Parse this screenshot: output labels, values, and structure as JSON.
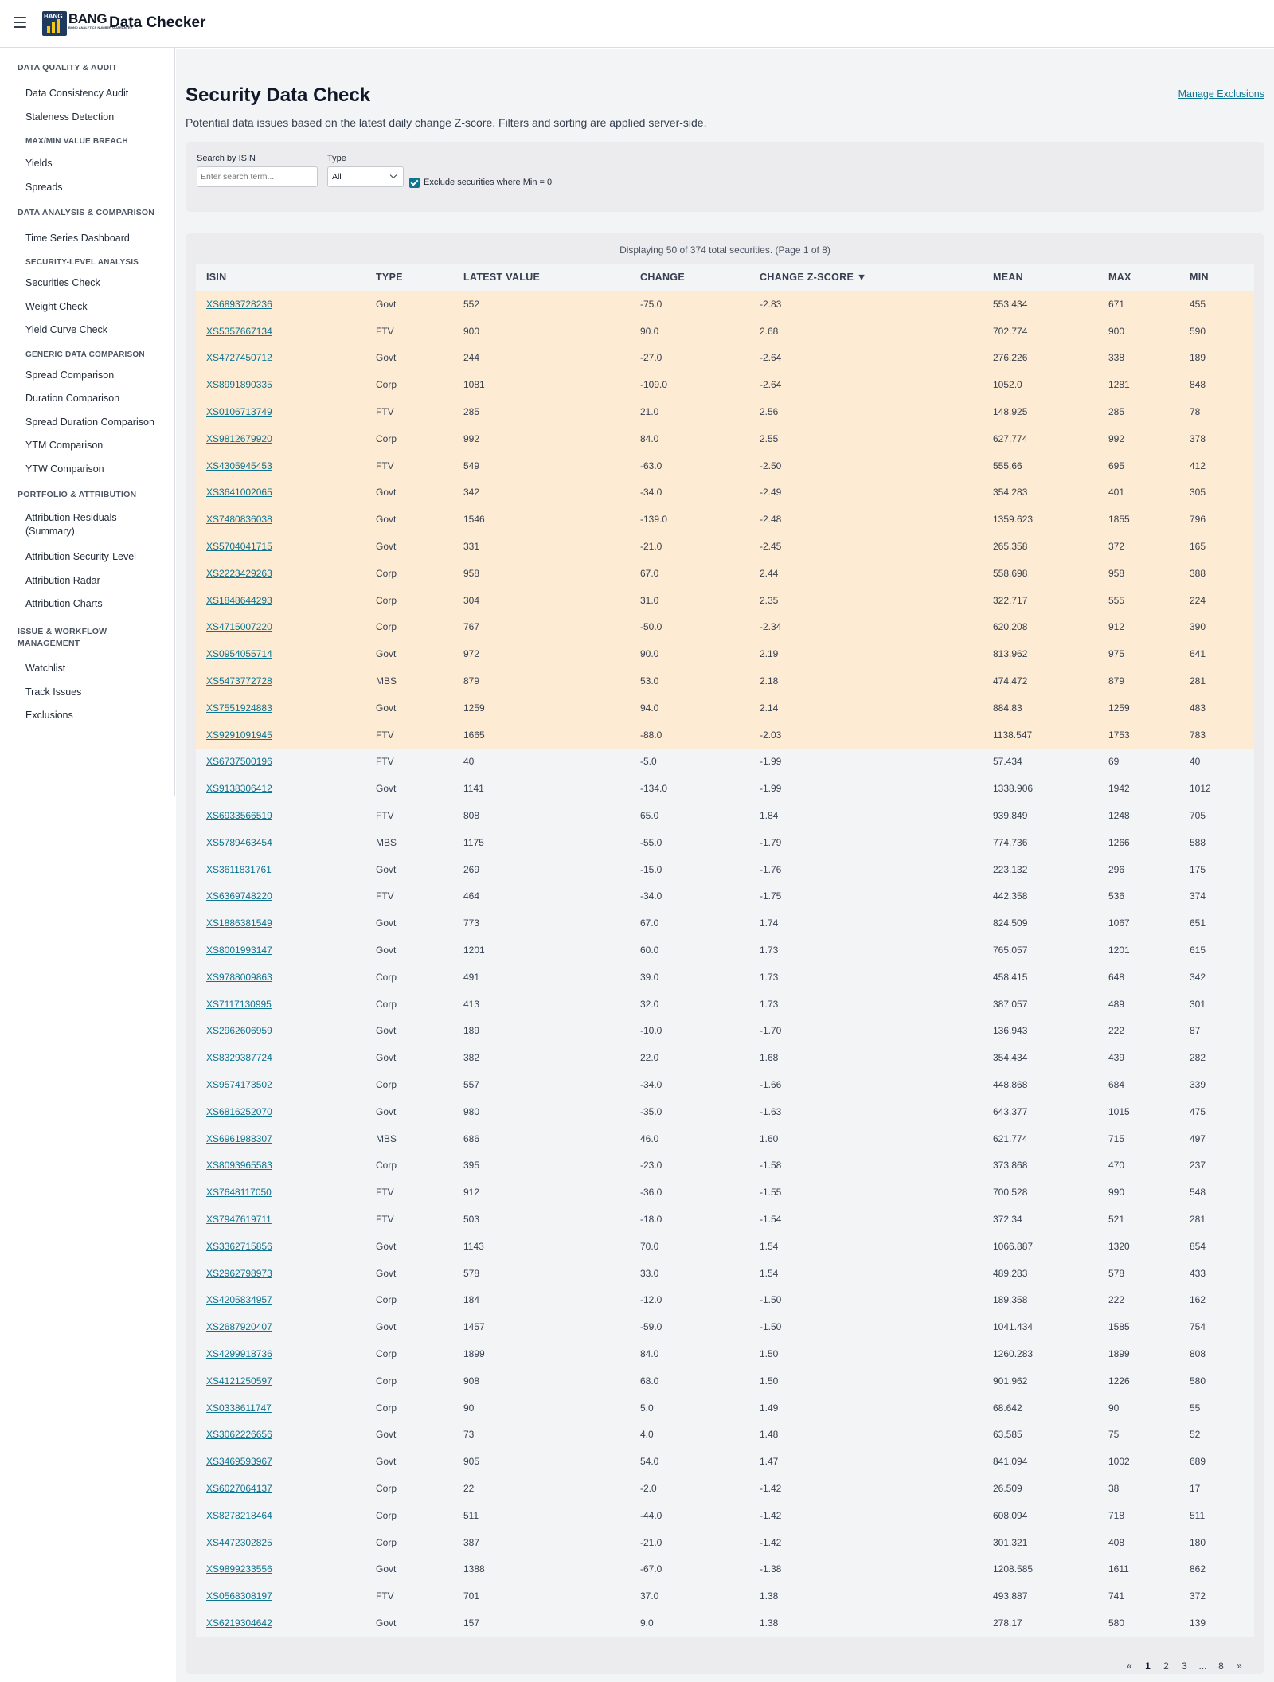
{
  "app": {
    "brand": "BANG",
    "brand_tagline": "BOND ANALYTICS NUMBER GUARANTEE",
    "title": "Data Checker"
  },
  "sidebar": {
    "sections": [
      {
        "label": "DATA QUALITY & AUDIT",
        "items": [
          "Data Consistency Audit",
          "Staleness Detection"
        ]
      },
      {
        "sub": "MAX/MIN VALUE BREACH",
        "items": [
          "Yields",
          "Spreads"
        ]
      },
      {
        "label": "DATA ANALYSIS & COMPARISON",
        "items": [
          "Time Series Dashboard"
        ]
      },
      {
        "sub": "SECURITY-LEVEL ANALYSIS",
        "items": [
          "Securities Check",
          "Weight Check",
          "Yield Curve Check"
        ]
      },
      {
        "sub": "GENERIC DATA COMPARISON",
        "items": [
          "Spread Comparison",
          "Duration Comparison",
          "Spread Duration Comparison",
          "YTM Comparison",
          "YTW Comparison"
        ]
      },
      {
        "label": "PORTFOLIO & ATTRIBUTION",
        "items": [
          "Attribution Residuals (Summary)",
          "Attribution Security-Level",
          "Attribution Radar",
          "Attribution Charts"
        ]
      },
      {
        "label": "ISSUE & WORKFLOW MANAGEMENT",
        "items": [
          "Watchlist",
          "Track Issues",
          "Exclusions"
        ]
      }
    ]
  },
  "main": {
    "title": "Security Data Check",
    "description": "Potential data issues based on the latest daily change Z-score. Filters and sorting are applied server-side.",
    "manage_link": "Manage Exclusions"
  },
  "filters": {
    "search_label": "Search by ISIN",
    "search_placeholder": "Enter search term...",
    "type_label": "Type",
    "type_value": "All",
    "exclude_label": "Exclude securities where Min = 0",
    "exclude_checked": true
  },
  "table": {
    "info": "Displaying 50 of 374 total securities. (Page 1 of 8)",
    "columns": [
      "ISIN",
      "TYPE",
      "LATEST VALUE",
      "CHANGE",
      "CHANGE Z-SCORE ▼",
      "MEAN",
      "MAX",
      "MIN"
    ],
    "rows": [
      [
        "XS6893728236",
        "Govt",
        "552",
        "-75.0",
        "-2.83",
        "553.434",
        "671",
        "455"
      ],
      [
        "XS5357667134",
        "FTV",
        "900",
        "90.0",
        "2.68",
        "702.774",
        "900",
        "590"
      ],
      [
        "XS4727450712",
        "Govt",
        "244",
        "-27.0",
        "-2.64",
        "276.226",
        "338",
        "189"
      ],
      [
        "XS8991890335",
        "Corp",
        "1081",
        "-109.0",
        "-2.64",
        "1052.0",
        "1281",
        "848"
      ],
      [
        "XS0106713749",
        "FTV",
        "285",
        "21.0",
        "2.56",
        "148.925",
        "285",
        "78"
      ],
      [
        "XS9812679920",
        "Corp",
        "992",
        "84.0",
        "2.55",
        "627.774",
        "992",
        "378"
      ],
      [
        "XS4305945453",
        "FTV",
        "549",
        "-63.0",
        "-2.50",
        "555.66",
        "695",
        "412"
      ],
      [
        "XS3641002065",
        "Govt",
        "342",
        "-34.0",
        "-2.49",
        "354.283",
        "401",
        "305"
      ],
      [
        "XS7480836038",
        "Govt",
        "1546",
        "-139.0",
        "-2.48",
        "1359.623",
        "1855",
        "796"
      ],
      [
        "XS5704041715",
        "Govt",
        "331",
        "-21.0",
        "-2.45",
        "265.358",
        "372",
        "165"
      ],
      [
        "XS2223429263",
        "Corp",
        "958",
        "67.0",
        "2.44",
        "558.698",
        "958",
        "388"
      ],
      [
        "XS1848644293",
        "Corp",
        "304",
        "31.0",
        "2.35",
        "322.717",
        "555",
        "224"
      ],
      [
        "XS4715007220",
        "Corp",
        "767",
        "-50.0",
        "-2.34",
        "620.208",
        "912",
        "390"
      ],
      [
        "XS0954055714",
        "Govt",
        "972",
        "90.0",
        "2.19",
        "813.962",
        "975",
        "641"
      ],
      [
        "XS5473772728",
        "MBS",
        "879",
        "53.0",
        "2.18",
        "474.472",
        "879",
        "281"
      ],
      [
        "XS7551924883",
        "Govt",
        "1259",
        "94.0",
        "2.14",
        "884.83",
        "1259",
        "483"
      ],
      [
        "XS9291091945",
        "FTV",
        "1665",
        "-88.0",
        "-2.03",
        "1138.547",
        "1753",
        "783"
      ],
      [
        "XS6737500196",
        "FTV",
        "40",
        "-5.0",
        "-1.99",
        "57.434",
        "69",
        "40"
      ],
      [
        "XS9138306412",
        "Govt",
        "1141",
        "-134.0",
        "-1.99",
        "1338.906",
        "1942",
        "1012"
      ],
      [
        "XS6933566519",
        "FTV",
        "808",
        "65.0",
        "1.84",
        "939.849",
        "1248",
        "705"
      ],
      [
        "XS5789463454",
        "MBS",
        "1175",
        "-55.0",
        "-1.79",
        "774.736",
        "1266",
        "588"
      ],
      [
        "XS3611831761",
        "Govt",
        "269",
        "-15.0",
        "-1.76",
        "223.132",
        "296",
        "175"
      ],
      [
        "XS6369748220",
        "FTV",
        "464",
        "-34.0",
        "-1.75",
        "442.358",
        "536",
        "374"
      ],
      [
        "XS1886381549",
        "Govt",
        "773",
        "67.0",
        "1.74",
        "824.509",
        "1067",
        "651"
      ],
      [
        "XS8001993147",
        "Govt",
        "1201",
        "60.0",
        "1.73",
        "765.057",
        "1201",
        "615"
      ],
      [
        "XS9788009863",
        "Corp",
        "491",
        "39.0",
        "1.73",
        "458.415",
        "648",
        "342"
      ],
      [
        "XS7117130995",
        "Corp",
        "413",
        "32.0",
        "1.73",
        "387.057",
        "489",
        "301"
      ],
      [
        "XS2962606959",
        "Govt",
        "189",
        "-10.0",
        "-1.70",
        "136.943",
        "222",
        "87"
      ],
      [
        "XS8329387724",
        "Govt",
        "382",
        "22.0",
        "1.68",
        "354.434",
        "439",
        "282"
      ],
      [
        "XS9574173502",
        "Corp",
        "557",
        "-34.0",
        "-1.66",
        "448.868",
        "684",
        "339"
      ],
      [
        "XS6816252070",
        "Govt",
        "980",
        "-35.0",
        "-1.63",
        "643.377",
        "1015",
        "475"
      ],
      [
        "XS6961988307",
        "MBS",
        "686",
        "46.0",
        "1.60",
        "621.774",
        "715",
        "497"
      ],
      [
        "XS8093965583",
        "Corp",
        "395",
        "-23.0",
        "-1.58",
        "373.868",
        "470",
        "237"
      ],
      [
        "XS7648117050",
        "FTV",
        "912",
        "-36.0",
        "-1.55",
        "700.528",
        "990",
        "548"
      ],
      [
        "XS7947619711",
        "FTV",
        "503",
        "-18.0",
        "-1.54",
        "372.34",
        "521",
        "281"
      ],
      [
        "XS3362715856",
        "Govt",
        "1143",
        "70.0",
        "1.54",
        "1066.887",
        "1320",
        "854"
      ],
      [
        "XS2962798973",
        "Govt",
        "578",
        "33.0",
        "1.54",
        "489.283",
        "578",
        "433"
      ],
      [
        "XS4205834957",
        "Corp",
        "184",
        "-12.0",
        "-1.50",
        "189.358",
        "222",
        "162"
      ],
      [
        "XS2687920407",
        "Govt",
        "1457",
        "-59.0",
        "-1.50",
        "1041.434",
        "1585",
        "754"
      ],
      [
        "XS4299918736",
        "Corp",
        "1899",
        "84.0",
        "1.50",
        "1260.283",
        "1899",
        "808"
      ],
      [
        "XS4121250597",
        "Corp",
        "908",
        "68.0",
        "1.50",
        "901.962",
        "1226",
        "580"
      ],
      [
        "XS0338611747",
        "Corp",
        "90",
        "5.0",
        "1.49",
        "68.642",
        "90",
        "55"
      ],
      [
        "XS3062226656",
        "Govt",
        "73",
        "4.0",
        "1.48",
        "63.585",
        "75",
        "52"
      ],
      [
        "XS3469593967",
        "Govt",
        "905",
        "54.0",
        "1.47",
        "841.094",
        "1002",
        "689"
      ],
      [
        "XS6027064137",
        "Corp",
        "22",
        "-2.0",
        "-1.42",
        "26.509",
        "38",
        "17"
      ],
      [
        "XS8278218464",
        "Corp",
        "511",
        "-44.0",
        "-1.42",
        "608.094",
        "718",
        "511"
      ],
      [
        "XS4472302825",
        "Corp",
        "387",
        "-21.0",
        "-1.42",
        "301.321",
        "408",
        "180"
      ],
      [
        "XS9899233556",
        "Govt",
        "1388",
        "-67.0",
        "-1.38",
        "1208.585",
        "1611",
        "862"
      ],
      [
        "XS0568308197",
        "FTV",
        "701",
        "37.0",
        "1.38",
        "493.887",
        "741",
        "372"
      ],
      [
        "XS6219304642",
        "Govt",
        "157",
        "9.0",
        "1.38",
        "278.17",
        "580",
        "139"
      ]
    ],
    "highlight_rows": 17,
    "highlight_color": "#fdebd3"
  },
  "pagination": {
    "items": [
      "«",
      "1",
      "2",
      "3",
      "...",
      "8",
      "»"
    ],
    "active": "1"
  }
}
